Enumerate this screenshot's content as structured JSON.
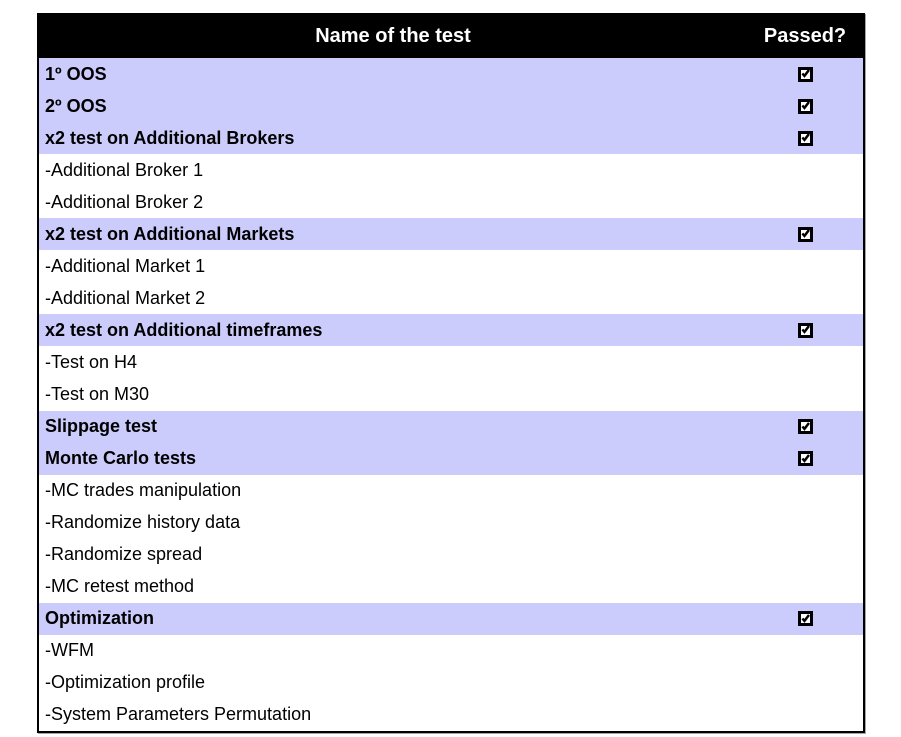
{
  "table": {
    "header": {
      "name_col": "Name of the test",
      "passed_col": "Passed?"
    },
    "rows": [
      {
        "label": "1º OOS",
        "category": true,
        "passed": true
      },
      {
        "label": "2º OOS",
        "category": true,
        "passed": true
      },
      {
        "label": "x2 test on Additional Brokers",
        "category": true,
        "passed": true
      },
      {
        "label": "-Additional Broker 1",
        "category": false,
        "passed": false
      },
      {
        "label": "-Additional Broker 2",
        "category": false,
        "passed": false
      },
      {
        "label": "x2 test on Additional Markets",
        "category": true,
        "passed": true
      },
      {
        "label": "-Additional Market 1",
        "category": false,
        "passed": false
      },
      {
        "label": "-Additional Market 2",
        "category": false,
        "passed": false
      },
      {
        "label": "x2 test on Additional timeframes",
        "category": true,
        "passed": true
      },
      {
        "label": "-Test on H4",
        "category": false,
        "passed": false
      },
      {
        "label": "-Test on M30",
        "category": false,
        "passed": false
      },
      {
        "label": "Slippage test",
        "category": true,
        "passed": true
      },
      {
        "label": "Monte Carlo tests",
        "category": true,
        "passed": true
      },
      {
        "label": "-MC trades manipulation",
        "category": false,
        "passed": false
      },
      {
        "label": "-Randomize history data",
        "category": false,
        "passed": false
      },
      {
        "label": "-Randomize spread",
        "category": false,
        "passed": false
      },
      {
        "label": "-MC retest method",
        "category": false,
        "passed": false
      },
      {
        "label": "Optimization",
        "category": true,
        "passed": true
      },
      {
        "label": "-WFM",
        "category": false,
        "passed": false
      },
      {
        "label": "-Optimization profile",
        "category": false,
        "passed": false
      },
      {
        "label": "-System Parameters Permutation",
        "category": false,
        "passed": false
      }
    ],
    "colors": {
      "header_bg": "#000000",
      "header_text": "#ffffff",
      "category_row_bg": "#ccccfc",
      "item_row_bg": "#ffffff",
      "border": "#000000",
      "checkmark": "#000000"
    }
  }
}
